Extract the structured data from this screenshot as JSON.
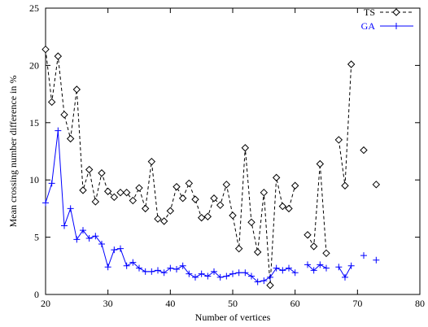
{
  "chart_data": {
    "type": "line",
    "xlabel": "Number of vertices",
    "ylabel": "Mean crossing number difference in %",
    "xlim": [
      20,
      80
    ],
    "ylim": [
      0,
      25
    ],
    "xticks": [
      "20",
      "30",
      "40",
      "50",
      "60",
      "70",
      "80"
    ],
    "yticks": [
      "0",
      "5",
      "10",
      "15",
      "20",
      "25"
    ],
    "grid": false,
    "legend_position": "top-right",
    "series": [
      {
        "name": "TS",
        "color": "#000000",
        "line": "dashed",
        "marker": "diamond",
        "x": [
          20,
          21,
          22,
          23,
          24,
          25,
          26,
          27,
          28,
          29,
          30,
          31,
          32,
          33,
          34,
          35,
          36,
          37,
          38,
          39,
          40,
          41,
          42,
          43,
          44,
          45,
          46,
          47,
          48,
          49,
          50,
          51,
          52,
          53,
          54,
          55,
          56,
          57,
          58,
          59,
          60,
          61,
          62,
          63,
          64,
          65,
          66,
          67,
          68,
          69,
          70,
          71,
          72,
          73
        ],
        "y": [
          21.4,
          16.8,
          20.8,
          15.7,
          13.6,
          17.9,
          9.1,
          10.9,
          8.1,
          10.6,
          9.0,
          8.5,
          8.9,
          8.9,
          8.2,
          9.3,
          7.5,
          11.6,
          6.6,
          6.4,
          7.3,
          9.4,
          8.4,
          9.7,
          8.3,
          6.7,
          6.8,
          8.4,
          7.8,
          9.6,
          6.9,
          4.0,
          12.8,
          6.3,
          3.7,
          8.9,
          0.8,
          10.2,
          7.7,
          7.5,
          9.5,
          null,
          5.2,
          4.2,
          11.4,
          3.6,
          null,
          13.5,
          9.5,
          20.1,
          null,
          12.6,
          null,
          9.6
        ]
      },
      {
        "name": "GA",
        "color": "#0000ff",
        "line": "solid",
        "marker": "plus",
        "x": [
          20,
          21,
          22,
          23,
          24,
          25,
          26,
          27,
          28,
          29,
          30,
          31,
          32,
          33,
          34,
          35,
          36,
          37,
          38,
          39,
          40,
          41,
          42,
          43,
          44,
          45,
          46,
          47,
          48,
          49,
          50,
          51,
          52,
          53,
          54,
          55,
          56,
          57,
          58,
          59,
          60,
          61,
          62,
          63,
          64,
          65,
          66,
          67,
          68,
          69,
          70,
          71,
          72,
          73
        ],
        "y": [
          8.0,
          9.7,
          14.3,
          6.0,
          7.5,
          4.8,
          5.6,
          4.9,
          5.1,
          4.4,
          2.4,
          3.9,
          4.0,
          2.5,
          2.8,
          2.3,
          2.0,
          2.0,
          2.1,
          1.9,
          2.3,
          2.2,
          2.5,
          1.8,
          1.5,
          1.8,
          1.6,
          2.0,
          1.5,
          1.6,
          1.8,
          1.9,
          1.9,
          1.6,
          1.1,
          1.2,
          1.5,
          2.3,
          2.1,
          2.3,
          1.9,
          null,
          2.6,
          2.1,
          2.6,
          2.3,
          null,
          2.4,
          1.5,
          2.5,
          null,
          3.4,
          null,
          3.0
        ]
      }
    ]
  }
}
